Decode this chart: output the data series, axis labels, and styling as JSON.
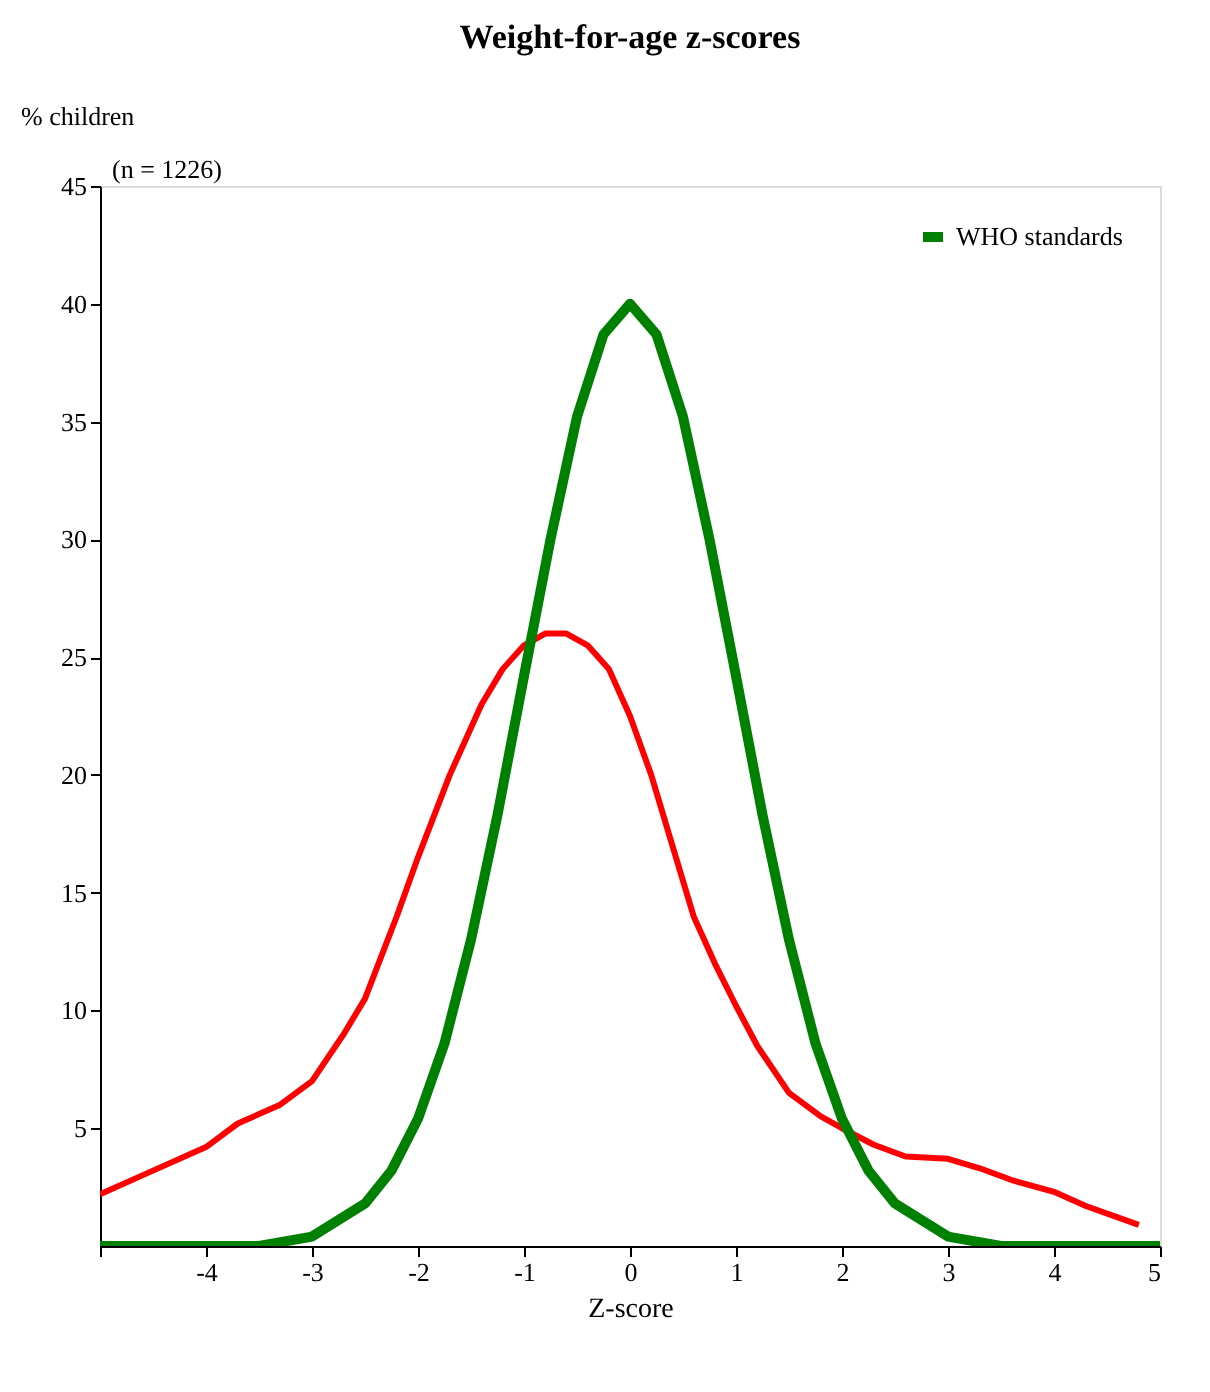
{
  "chart_data": {
    "type": "line",
    "title": "Weight-for-age z-scores",
    "xlabel": "Z-score",
    "ylabel": "% children",
    "annotations": [
      "(n = 1226)"
    ],
    "xlim": [
      -5,
      5
    ],
    "xticks": [
      {
        "value": -5,
        "label": null
      },
      -4,
      -3,
      -2,
      -1,
      0,
      1,
      2,
      3,
      4,
      5
    ],
    "ylim": [
      0,
      45
    ],
    "yticks": [
      5,
      10,
      15,
      20,
      25,
      30,
      35,
      40,
      45
    ],
    "grid": false,
    "legend": "top right",
    "marker": "none",
    "line_style": "solid",
    "series": [
      {
        "color": "#ff0000",
        "x": [
          -5,
          -4.5,
          -4,
          -3.7,
          -3.3,
          -3,
          -2.7,
          -2.5,
          -2.2,
          -2,
          -1.7,
          -1.4,
          -1.2,
          -1,
          -0.8,
          -0.6,
          -0.4,
          -0.2,
          0,
          0.2,
          0.4,
          0.6,
          0.8,
          1,
          1.2,
          1.5,
          1.8,
          2,
          2.3,
          2.6,
          3,
          3.3,
          3.6,
          4,
          4.3,
          4.8
        ],
        "values": [
          2.2,
          3.2,
          4.2,
          5.2,
          6,
          7,
          9,
          10.5,
          14,
          16.5,
          20,
          23,
          24.5,
          25.5,
          26,
          26,
          25.5,
          24.5,
          22.5,
          20,
          17,
          14,
          12,
          10.2,
          8.5,
          6.5,
          5.5,
          5,
          4.3,
          3.8,
          3.7,
          3.3,
          2.8,
          2.3,
          1.7,
          0.9
        ]
      },
      {
        "name": "WHO standards",
        "color": "#008000",
        "x": [
          -5,
          -4,
          -3.5,
          -3,
          -2.5,
          -2.25,
          -2,
          -1.75,
          -1.5,
          -1.25,
          -1,
          -0.75,
          -0.5,
          -0.25,
          0,
          0.25,
          0.5,
          0.75,
          1,
          1.25,
          1.5,
          1.75,
          2,
          2.25,
          2.5,
          3,
          3.5,
          4,
          5
        ],
        "values": [
          0,
          0,
          0,
          0.4,
          1.8,
          3.2,
          5.4,
          8.6,
          13,
          18.3,
          24.2,
          30,
          35.2,
          38.7,
          40,
          38.7,
          35.2,
          30,
          24.2,
          18.3,
          13,
          8.6,
          5.4,
          3.2,
          1.8,
          0.4,
          0,
          0,
          0
        ]
      }
    ]
  }
}
